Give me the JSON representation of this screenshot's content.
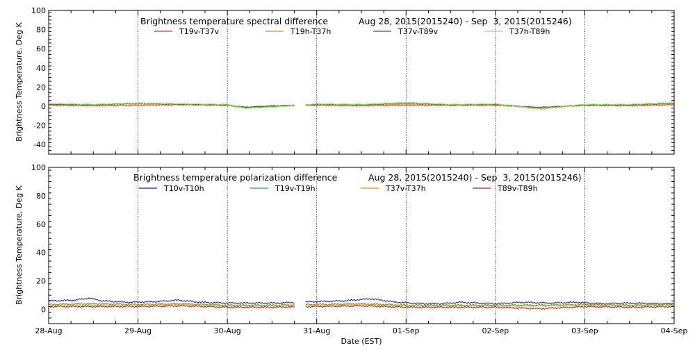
{
  "xlabel": "Date (EST)",
  "x_ticks": [
    "28-Aug",
    "29-Aug",
    "30-Aug",
    "31-Aug",
    "01-Sep",
    "02-Sep",
    "03-Sep",
    "04-Sep"
  ],
  "colors": {
    "T19v-T37v": "#e8282a",
    "T19h-T37h": "#f0861e",
    "T37v-T89v": "#127d12",
    "T37h-T89h": "#7ee87e",
    "T10v-T10h": "#1a1a9a",
    "T19v-T19h": "#2aa82a",
    "T37v-T37h": "#f08a1e",
    "T89v-T89h": "#a8200e"
  },
  "chart_data": [
    {
      "type": "line",
      "title": "Brightness temperature spectral difference",
      "date_range": "Aug 28, 2015(2015240) - Sep  3, 2015(2015246)",
      "ylabel": "Brightness Temperature, Deg K",
      "ylim": [
        -50,
        100
      ],
      "y_ticks": [
        "100",
        "80",
        "60",
        "40",
        "20",
        "0",
        "-20",
        "-40"
      ],
      "xlim": [
        "2015-08-28",
        "2015-09-04"
      ],
      "data_gap": [
        "2015-08-30 18:00",
        "2015-08-30 21:00"
      ],
      "grid": "vertical lines at each day",
      "legend": "top, horizontal",
      "series": [
        {
          "name": "T19v-T37v",
          "x_days": [
            0,
            0.5,
            1,
            1.5,
            2,
            2.2,
            2.5,
            3,
            3.5,
            4,
            4.5,
            5,
            5.5,
            6,
            6.5,
            7
          ],
          "values": [
            1,
            0.5,
            1,
            1.5,
            1,
            -1,
            0.5,
            1,
            0.5,
            1,
            1,
            1,
            -1,
            1,
            0.5,
            1.5
          ]
        },
        {
          "name": "T19h-T37h",
          "x_days": [
            0,
            0.5,
            1,
            1.5,
            2,
            2.2,
            2.5,
            3,
            3.5,
            4,
            4.5,
            5,
            5.5,
            6,
            6.5,
            7
          ],
          "values": [
            2,
            1,
            1.5,
            2,
            1,
            -2,
            0,
            1.5,
            1,
            2,
            1,
            1.5,
            -2,
            1,
            1,
            2
          ]
        },
        {
          "name": "T37v-T89v",
          "x_days": [
            0,
            0.5,
            1,
            1.5,
            2,
            2.2,
            2.5,
            3,
            3.5,
            4,
            4.5,
            5,
            5.5,
            6,
            6.5,
            7
          ],
          "values": [
            2,
            1.5,
            3,
            2,
            1.5,
            -1,
            0,
            2,
            1.5,
            3,
            1.5,
            2,
            -2,
            1.5,
            1.5,
            3
          ]
        },
        {
          "name": "T37h-T89h",
          "x_days": [
            0,
            0.5,
            1,
            1.5,
            2,
            2.2,
            2.5,
            3,
            3.5,
            4,
            4.5,
            5,
            5.5,
            6,
            6.5,
            7
          ],
          "values": [
            3,
            2,
            3.5,
            2.5,
            2,
            -2,
            -1,
            2.5,
            2,
            4,
            2,
            2.5,
            -3,
            2,
            2,
            4
          ]
        }
      ]
    },
    {
      "type": "line",
      "title": "Brightness temperature polarization difference",
      "date_range": "Aug 28, 2015(2015240) - Sep  3, 2015(2015246)",
      "ylabel": "Brightness Temperature, Deg K",
      "ylim": [
        -10,
        100
      ],
      "y_ticks": [
        "100",
        "80",
        "60",
        "40",
        "20",
        "0"
      ],
      "xlim": [
        "2015-08-28",
        "2015-09-04"
      ],
      "data_gap": [
        "2015-08-30 18:00",
        "2015-08-30 21:00"
      ],
      "grid": "vertical lines at each day",
      "legend": "top, horizontal",
      "series": [
        {
          "name": "T10v-T10h",
          "x_days": [
            0,
            0.3,
            0.45,
            0.6,
            0.9,
            1.2,
            1.45,
            1.7,
            2,
            2.3,
            2.6,
            2.75,
            3,
            3.3,
            3.6,
            3.9,
            4.2,
            4.4,
            4.6,
            5,
            5.3,
            5.6,
            5.9,
            6.2,
            6.5,
            6.8,
            7
          ],
          "values": [
            6,
            6.5,
            8,
            6,
            5,
            5.5,
            6.5,
            5,
            4.5,
            4.5,
            4.5,
            5,
            5.5,
            6,
            7.5,
            5,
            4,
            4,
            5,
            4,
            5,
            4.5,
            5,
            4,
            4.5,
            4,
            4
          ]
        },
        {
          "name": "T19v-T19h",
          "x_days": [
            0,
            0.5,
            1,
            1.5,
            2,
            2.5,
            3,
            3.5,
            4,
            4.5,
            5,
            5.5,
            6,
            6.5,
            7
          ],
          "values": [
            3.5,
            4,
            3.5,
            4,
            3,
            3,
            3.5,
            4,
            3,
            3,
            3,
            3,
            3.5,
            3,
            3.5
          ]
        },
        {
          "name": "T37v-T37h",
          "x_days": [
            0,
            0.5,
            1,
            1.5,
            2,
            2.5,
            3,
            3.5,
            4,
            4.5,
            5,
            5.5,
            6,
            6.5,
            7
          ],
          "values": [
            3,
            3,
            3,
            3.5,
            2.5,
            2.5,
            3,
            3.5,
            2.5,
            2.5,
            2.5,
            2.5,
            3,
            2.5,
            3
          ]
        },
        {
          "name": "T89v-T89h",
          "x_days": [
            0,
            0.5,
            1,
            1.5,
            2,
            2.5,
            3,
            3.5,
            4,
            4.5,
            5,
            5.5,
            6,
            6.5,
            7
          ],
          "values": [
            2,
            2,
            2,
            2.5,
            1.5,
            1.5,
            2,
            2.5,
            1.5,
            1.5,
            1.5,
            0.5,
            2,
            1.5,
            2
          ]
        }
      ]
    }
  ]
}
